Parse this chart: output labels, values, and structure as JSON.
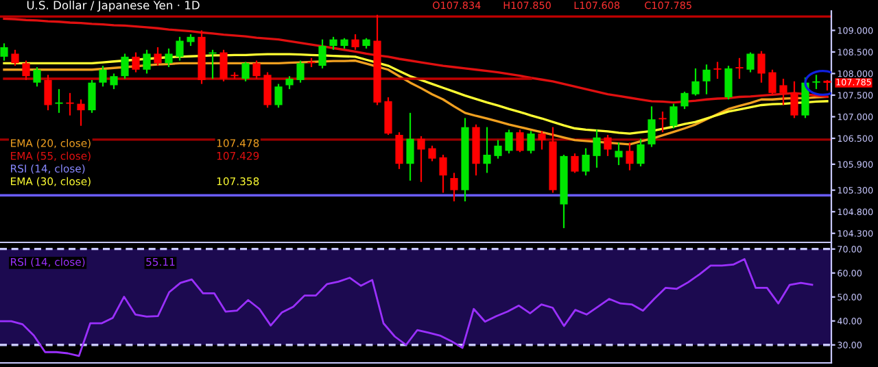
{
  "chart_data": [
    {
      "type": "candlestick",
      "title": "U.S. Dollar / Japanese Yen · 1D",
      "categories": [
        null,
        null,
        null,
        null,
        null,
        null,
        null,
        null,
        null,
        null,
        null,
        null,
        null,
        null,
        null,
        null,
        null,
        null,
        null,
        null,
        null,
        null,
        null,
        null,
        null,
        null,
        null,
        null,
        null,
        null,
        null,
        null,
        null,
        null,
        null,
        null,
        null,
        null,
        null,
        null,
        null,
        null,
        null,
        null,
        null,
        null,
        null,
        null,
        null,
        null,
        null,
        null,
        null,
        null,
        null,
        null,
        null,
        null,
        null,
        null,
        null,
        null,
        null,
        null,
        null,
        null,
        null,
        null,
        null,
        null,
        null,
        null,
        null,
        null,
        null,
        null
      ],
      "ohlc": [
        [
          108.39,
          108.7,
          108.3,
          108.61
        ],
        [
          108.46,
          108.55,
          108.18,
          108.24
        ],
        [
          108.24,
          108.3,
          107.85,
          107.94
        ],
        [
          107.79,
          108.15,
          107.7,
          108.09
        ],
        [
          107.85,
          107.97,
          107.15,
          107.27
        ],
        [
          107.3,
          107.64,
          107.09,
          107.33
        ],
        [
          107.33,
          107.55,
          107.03,
          107.3
        ],
        [
          107.3,
          107.4,
          106.79,
          107.15
        ],
        [
          107.15,
          107.85,
          107.09,
          107.79
        ],
        [
          107.79,
          108.18,
          107.7,
          108.09
        ],
        [
          107.73,
          108.0,
          107.64,
          107.94
        ],
        [
          107.94,
          108.46,
          107.88,
          108.39
        ],
        [
          108.39,
          108.49,
          108.03,
          108.09
        ],
        [
          108.09,
          108.55,
          108.0,
          108.46
        ],
        [
          108.46,
          108.61,
          108.18,
          108.24
        ],
        [
          108.24,
          108.58,
          108.15,
          108.46
        ],
        [
          108.39,
          108.85,
          108.3,
          108.76
        ],
        [
          108.73,
          108.91,
          108.64,
          108.85
        ],
        [
          108.85,
          109.0,
          107.76,
          107.85
        ],
        [
          108.46,
          108.55,
          107.88,
          108.49
        ],
        [
          108.49,
          108.55,
          107.82,
          107.88
        ],
        [
          107.97,
          108.03,
          107.88,
          107.94
        ],
        [
          107.88,
          108.27,
          107.82,
          108.24
        ],
        [
          108.24,
          108.3,
          107.88,
          107.94
        ],
        [
          107.97,
          108.03,
          107.21,
          107.27
        ],
        [
          107.27,
          107.76,
          107.21,
          107.7
        ],
        [
          107.73,
          107.94,
          107.64,
          107.88
        ],
        [
          107.85,
          108.3,
          107.79,
          108.24
        ],
        [
          108.27,
          108.36,
          108.15,
          108.24
        ],
        [
          108.18,
          108.79,
          108.12,
          108.64
        ],
        [
          108.64,
          108.85,
          108.55,
          108.79
        ],
        [
          108.64,
          108.82,
          108.58,
          108.79
        ],
        [
          108.79,
          108.91,
          108.55,
          108.61
        ],
        [
          108.64,
          108.82,
          108.58,
          108.79
        ],
        [
          108.76,
          109.36,
          107.27,
          107.33
        ],
        [
          107.36,
          107.45,
          106.58,
          106.61
        ],
        [
          106.58,
          106.64,
          105.79,
          105.91
        ],
        [
          105.91,
          107.09,
          105.52,
          106.49
        ],
        [
          106.49,
          106.55,
          105.49,
          106.24
        ],
        [
          106.27,
          106.33,
          105.97,
          106.03
        ],
        [
          106.06,
          106.12,
          105.24,
          105.64
        ],
        [
          105.58,
          105.7,
          105.04,
          105.3
        ],
        [
          105.3,
          106.97,
          105.04,
          106.76
        ],
        [
          106.76,
          106.82,
          105.64,
          105.91
        ],
        [
          105.91,
          106.76,
          105.7,
          106.12
        ],
        [
          106.09,
          106.46,
          106.03,
          106.33
        ],
        [
          106.21,
          106.7,
          106.15,
          106.64
        ],
        [
          106.64,
          106.7,
          106.18,
          106.21
        ],
        [
          106.21,
          106.67,
          106.15,
          106.61
        ],
        [
          106.61,
          106.67,
          106.24,
          106.46
        ],
        [
          106.43,
          106.76,
          105.24,
          105.3
        ],
        [
          104.97,
          106.12,
          104.42,
          106.09
        ],
        [
          106.09,
          106.15,
          105.7,
          105.73
        ],
        [
          105.73,
          106.27,
          105.64,
          106.12
        ],
        [
          106.09,
          106.7,
          105.82,
          106.52
        ],
        [
          106.52,
          106.58,
          106.09,
          106.24
        ],
        [
          106.06,
          106.4,
          105.88,
          106.21
        ],
        [
          106.21,
          106.4,
          105.76,
          105.91
        ],
        [
          105.91,
          106.49,
          105.85,
          106.36
        ],
        [
          106.36,
          107.24,
          106.3,
          106.94
        ],
        [
          106.97,
          107.12,
          106.64,
          106.94
        ],
        [
          106.79,
          107.3,
          106.73,
          107.24
        ],
        [
          107.24,
          107.58,
          107.18,
          107.55
        ],
        [
          107.52,
          108.12,
          107.49,
          107.82
        ],
        [
          107.82,
          108.21,
          107.52,
          108.09
        ],
        [
          108.12,
          108.27,
          107.88,
          108.09
        ],
        [
          107.45,
          108.18,
          107.4,
          108.12
        ],
        [
          108.15,
          108.36,
          107.88,
          108.12
        ],
        [
          108.09,
          108.49,
          108.03,
          108.46
        ],
        [
          108.46,
          108.52,
          107.79,
          108.0
        ],
        [
          108.03,
          108.09,
          107.52,
          107.55
        ],
        [
          107.73,
          107.88,
          107.27,
          107.55
        ],
        [
          107.55,
          107.82,
          106.97,
          107.03
        ],
        [
          107.03,
          107.91,
          106.97,
          107.79
        ],
        [
          107.79,
          107.97,
          107.64,
          107.82
        ],
        [
          107.834,
          107.85,
          107.608,
          107.785
        ]
      ],
      "colors": [
        "#00e600",
        "#ff0000",
        "#ff0000",
        "#00e600",
        "#ff0000",
        "#00e600",
        "#ff0000",
        "#ff0000",
        "#00e600",
        "#00e600",
        "#00e600",
        "#00e600",
        "#ff0000",
        "#00e600",
        "#ff0000",
        "#00e600",
        "#00e600",
        "#00e600",
        "#ff0000",
        "#00e600",
        "#ff0000",
        "#ff0000",
        "#00e600",
        "#ff0000",
        "#ff0000",
        "#00e600",
        "#00e600",
        "#00e600",
        "#ff0000",
        "#00e600",
        "#00e600",
        "#00e600",
        "#ff0000",
        "#00e600",
        "#ff0000",
        "#ff0000",
        "#ff0000",
        "#00e600",
        "#ff0000",
        "#ff0000",
        "#ff0000",
        "#ff0000",
        "#00e600",
        "#ff0000",
        "#00e600",
        "#00e600",
        "#00e600",
        "#ff0000",
        "#00e600",
        "#ff0000",
        "#ff0000",
        "#00e600",
        "#ff0000",
        "#00e600",
        "#00e600",
        "#ff0000",
        "#00e600",
        "#ff0000",
        "#00e600",
        "#00e600",
        "#ff0000",
        "#00e600",
        "#00e600",
        "#00e600",
        "#00e600",
        "#ff0000",
        "#00e600",
        "#ff0000",
        "#00e600",
        "#ff0000",
        "#ff0000",
        "#ff0000",
        "#ff0000",
        "#00e600",
        "#00e600",
        "#ff0000"
      ],
      "series": [
        {
          "type": "line",
          "name": "EMA (20, close)",
          "color": "#f0a020",
          "values": [
            108.09,
            108.09,
            108.09,
            108.09,
            108.09,
            108.09,
            108.09,
            108.09,
            108.09,
            108.11,
            108.13,
            108.15,
            108.17,
            108.19,
            108.21,
            108.22,
            108.24,
            108.24,
            108.24,
            108.24,
            108.24,
            108.24,
            108.24,
            108.24,
            108.24,
            108.24,
            108.25,
            108.26,
            108.27,
            108.28,
            108.29,
            108.29,
            108.3,
            108.23,
            108.16,
            108.09,
            107.94,
            107.79,
            107.66,
            107.52,
            107.4,
            107.24,
            107.09,
            107.02,
            106.96,
            106.89,
            106.82,
            106.76,
            106.7,
            106.64,
            106.58,
            106.52,
            106.46,
            106.44,
            106.42,
            106.4,
            106.38,
            106.36,
            106.43,
            106.49,
            106.57,
            106.65,
            106.73,
            106.82,
            106.94,
            107.06,
            107.18,
            107.25,
            107.32,
            107.4,
            107.4,
            107.42,
            107.43,
            107.43,
            107.45,
            107.46
          ]
        },
        {
          "type": "line",
          "name": "EMA (55, close)",
          "color": "#e01010",
          "values": [
            109.27,
            109.26,
            109.24,
            109.23,
            109.21,
            109.2,
            109.18,
            109.17,
            109.15,
            109.14,
            109.12,
            109.11,
            109.09,
            109.07,
            109.05,
            109.02,
            109.0,
            108.98,
            108.95,
            108.93,
            108.9,
            108.88,
            108.86,
            108.83,
            108.81,
            108.79,
            108.75,
            108.71,
            108.67,
            108.63,
            108.59,
            108.55,
            108.51,
            108.46,
            108.42,
            108.39,
            108.34,
            108.3,
            108.26,
            108.22,
            108.18,
            108.15,
            108.12,
            108.09,
            108.06,
            108.03,
            107.99,
            107.95,
            107.9,
            107.86,
            107.82,
            107.76,
            107.7,
            107.64,
            107.58,
            107.52,
            107.48,
            107.44,
            107.4,
            107.36,
            107.35,
            107.33,
            107.35,
            107.37,
            107.4,
            107.42,
            107.43,
            107.46,
            107.47,
            107.49,
            107.51,
            107.53,
            107.55,
            107.52,
            107.49,
            107.46
          ]
        },
        {
          "type": "line",
          "name": "EMA (30, close)",
          "color": "#ffff33",
          "values": [
            108.24,
            108.24,
            108.24,
            108.24,
            108.24,
            108.24,
            108.24,
            108.24,
            108.24,
            108.26,
            108.28,
            108.3,
            108.32,
            108.34,
            108.36,
            108.38,
            108.39,
            108.4,
            108.41,
            108.42,
            108.42,
            108.43,
            108.43,
            108.44,
            108.45,
            108.45,
            108.45,
            108.44,
            108.43,
            108.42,
            108.41,
            108.4,
            108.39,
            108.32,
            108.25,
            108.18,
            108.06,
            107.94,
            107.85,
            107.76,
            107.67,
            107.58,
            107.49,
            107.41,
            107.33,
            107.26,
            107.18,
            107.11,
            107.03,
            106.96,
            106.88,
            106.8,
            106.73,
            106.7,
            106.68,
            106.66,
            106.63,
            106.61,
            106.64,
            106.67,
            106.72,
            106.77,
            106.83,
            106.88,
            106.96,
            107.04,
            107.12,
            107.17,
            107.22,
            107.27,
            107.29,
            107.3,
            107.32,
            107.33,
            107.35,
            107.36
          ]
        },
        {
          "type": "line",
          "color": "#c00000",
          "values": [
            107.88,
            107.88,
            107.88,
            107.88,
            107.88,
            107.88,
            107.88,
            107.88,
            107.88,
            107.88,
            107.88,
            107.88,
            107.88,
            107.88,
            107.88,
            107.88,
            107.88,
            107.88,
            107.88,
            107.88,
            107.88,
            107.88,
            107.88,
            107.88,
            107.88,
            107.88,
            107.88,
            107.88,
            107.88,
            107.88,
            107.88,
            107.88,
            107.88,
            107.88,
            107.88,
            107.88,
            107.88,
            107.88,
            107.88,
            107.88,
            107.88,
            107.88,
            107.88,
            107.88,
            107.88,
            107.88,
            107.88,
            107.88,
            107.88,
            null,
            null,
            null,
            null,
            null,
            null,
            null,
            null,
            null,
            null,
            null,
            null,
            null,
            null,
            null,
            null,
            null,
            null,
            null,
            null,
            null,
            null,
            null,
            null,
            null,
            null,
            null
          ]
        }
      ],
      "ylim": [
        104.09,
        109.45
      ],
      "yticks": [
        {
          "value": 109.0,
          "label": "109.000"
        },
        {
          "value": 108.5,
          "label": "108.500"
        },
        {
          "value": 108.0,
          "label": "108.000"
        },
        {
          "value": 107.5,
          "label": "107.500"
        },
        {
          "value": 107.0,
          "label": "107.000"
        },
        {
          "value": 106.5,
          "label": "106.500"
        },
        {
          "value": 105.9,
          "label": "105.900"
        },
        {
          "value": 105.3,
          "label": "105.300"
        },
        {
          "value": 104.8,
          "label": "104.800"
        },
        {
          "value": 104.3,
          "label": "104.300"
        }
      ],
      "ref_lines": [
        {
          "axis": "y",
          "value": 109.32,
          "color": "#c00000"
        },
        {
          "axis": "y",
          "value": 106.47,
          "color": "#a00000"
        },
        {
          "axis": "y",
          "value": 105.18,
          "color": "#6a5cff"
        }
      ],
      "annotations": [
        "O107.834",
        "H107.850",
        "L107.608",
        "C107.785",
        "107.478",
        "107.429",
        "RSI (14, close)",
        "107.358",
        "107.785"
      ],
      "legend": "bottom left",
      "tick_labels": "y"
    },
    {
      "type": "line",
      "categories": [
        null,
        null,
        null,
        null,
        null,
        null,
        null,
        null,
        null,
        null,
        null,
        null,
        null,
        null,
        null,
        null,
        null,
        null,
        null,
        null,
        null,
        null,
        null,
        null,
        null,
        null,
        null,
        null,
        null,
        null,
        null,
        null,
        null,
        null,
        null,
        null,
        null,
        null,
        null,
        null,
        null,
        null,
        null,
        null,
        null,
        null,
        null,
        null,
        null,
        null,
        null,
        null,
        null,
        null,
        null,
        null,
        null,
        null,
        null,
        null,
        null,
        null,
        null,
        null,
        null,
        null,
        null,
        null,
        null,
        null,
        null,
        null,
        null
      ],
      "series": [
        {
          "name": "RSI (14, close)",
          "color": "#9b30ff",
          "values": [
            39.9,
            39.9,
            38.6,
            33.9,
            27.0,
            27.0,
            26.5,
            25.4,
            39.0,
            39.0,
            41.3,
            50.1,
            42.7,
            41.8,
            42.0,
            52.0,
            55.9,
            57.3,
            51.5,
            51.5,
            43.9,
            44.3,
            48.7,
            45.0,
            38.1,
            43.6,
            45.9,
            50.6,
            50.6,
            55.4,
            56.4,
            58.0,
            54.7,
            57.1,
            39.0,
            33.5,
            30.0,
            36.2,
            35.1,
            33.9,
            31.6,
            28.8,
            45.0,
            39.7,
            42.0,
            43.9,
            46.4,
            43.2,
            46.9,
            45.5,
            37.9,
            44.6,
            42.7,
            45.9,
            49.2,
            47.3,
            46.9,
            44.3,
            49.2,
            53.8,
            53.4,
            56.1,
            59.4,
            63.1,
            63.1,
            63.5,
            65.8,
            53.8,
            53.8,
            47.3,
            55.0,
            55.9,
            55.1
          ]
        }
      ],
      "ylim": [
        22.5,
        72.2
      ],
      "yticks": [
        {
          "value": 70,
          "label": "70.00"
        },
        {
          "value": 60,
          "label": "60.00"
        },
        {
          "value": 50,
          "label": "50.00"
        },
        {
          "value": 40,
          "label": "40.00"
        },
        {
          "value": 30,
          "label": "30.00"
        }
      ],
      "ref_lines": [
        {
          "axis": "y",
          "value": 70,
          "color": "#c8c8ff",
          "line_style": "dashed"
        },
        {
          "axis": "y",
          "value": 30,
          "color": "#c8c8ff",
          "line_style": "dashed"
        }
      ],
      "bands": [
        {
          "axis": "y",
          "from": 30,
          "to": 70,
          "color": "#1c0a50"
        }
      ],
      "annotations": [
        "55.11"
      ],
      "legend": "top left",
      "tick_labels": "y"
    }
  ]
}
